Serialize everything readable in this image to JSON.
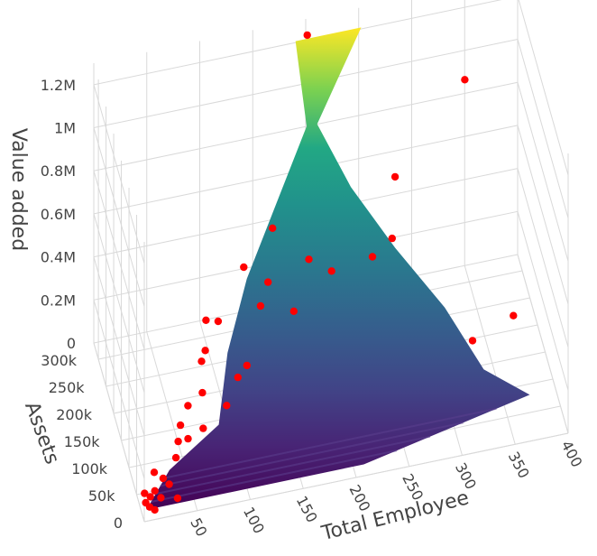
{
  "chart_data": {
    "type": "surface3d",
    "title": "",
    "axes": {
      "x": {
        "label": "Total Employee",
        "range": [
          0,
          400
        ],
        "ticks": [
          "50",
          "100",
          "150",
          "200",
          "250",
          "300",
          "350",
          "400"
        ]
      },
      "y": {
        "label": "Assets",
        "range": [
          0,
          330000
        ],
        "ticks": [
          "0",
          "50k",
          "100k",
          "150k",
          "200k",
          "250k",
          "300k"
        ]
      },
      "z": {
        "label": "Value added",
        "range": [
          0,
          1300000
        ],
        "ticks": [
          "0",
          "0.2M",
          "0.4M",
          "0.6M",
          "0.8M",
          "1M",
          "1.2M"
        ]
      }
    },
    "grid": true,
    "colorscale": "viridis",
    "surface_profile": [
      {
        "value_added": 0,
        "employee_min": 5,
        "employee_max": 210
      },
      {
        "value_added": 100000,
        "employee_min": 30,
        "employee_max": 370
      },
      {
        "value_added": 200000,
        "employee_min": 80,
        "employee_max": 330
      },
      {
        "value_added": 400000,
        "employee_min": 95,
        "employee_max": 300
      },
      {
        "value_added": 600000,
        "employee_min": 120,
        "employee_max": 260
      },
      {
        "value_added": 800000,
        "employee_min": 155,
        "employee_max": 225
      },
      {
        "value_added": 1000000,
        "employee_min": 190,
        "employee_max": 200
      },
      {
        "value_added": 1250000,
        "employee_min": 188,
        "employee_max": 250
      }
    ],
    "points_color": "#ff0000",
    "points": [
      {
        "employee": 5,
        "assets": 25000,
        "value_added": 20000
      },
      {
        "employee": 8,
        "assets": 20000,
        "value_added": 10000
      },
      {
        "employee": 10,
        "assets": 30000,
        "value_added": 30000
      },
      {
        "employee": 12,
        "assets": 15000,
        "value_added": 5000
      },
      {
        "employee": 15,
        "assets": 35000,
        "value_added": 40000
      },
      {
        "employee": 6,
        "assets": 40000,
        "value_added": 25000
      },
      {
        "employee": 20,
        "assets": 30000,
        "value_added": 15000
      },
      {
        "employee": 25,
        "assets": 50000,
        "value_added": 50000
      },
      {
        "employee": 30,
        "assets": 45000,
        "value_added": 30000
      },
      {
        "employee": 35,
        "assets": 25000,
        "value_added": 10000
      },
      {
        "employee": 18,
        "assets": 60000,
        "value_added": 60000
      },
      {
        "employee": 40,
        "assets": 70000,
        "value_added": 80000
      },
      {
        "employee": 45,
        "assets": 90000,
        "value_added": 100000
      },
      {
        "employee": 50,
        "assets": 110000,
        "value_added": 120000
      },
      {
        "employee": 55,
        "assets": 95000,
        "value_added": 90000
      },
      {
        "employee": 60,
        "assets": 130000,
        "value_added": 150000
      },
      {
        "employee": 70,
        "assets": 100000,
        "value_added": 110000
      },
      {
        "employee": 75,
        "assets": 140000,
        "value_added": 170000
      },
      {
        "employee": 80,
        "assets": 180000,
        "value_added": 210000
      },
      {
        "employee": 85,
        "assets": 190000,
        "value_added": 230000
      },
      {
        "employee": 90,
        "assets": 220000,
        "value_added": 290000
      },
      {
        "employee": 95,
        "assets": 120000,
        "value_added": 140000
      },
      {
        "employee": 100,
        "assets": 210000,
        "value_added": 300000
      },
      {
        "employee": 110,
        "assets": 150000,
        "value_added": 180000
      },
      {
        "employee": 120,
        "assets": 160000,
        "value_added": 200000
      },
      {
        "employee": 130,
        "assets": 250000,
        "value_added": 420000
      },
      {
        "employee": 140,
        "assets": 210000,
        "value_added": 330000
      },
      {
        "employee": 150,
        "assets": 230000,
        "value_added": 380000
      },
      {
        "employee": 160,
        "assets": 270000,
        "value_added": 520000
      },
      {
        "employee": 170,
        "assets": 200000,
        "value_added": 300000
      },
      {
        "employee": 190,
        "assets": 240000,
        "value_added": 420000
      },
      {
        "employee": 210,
        "assets": 230000,
        "value_added": 370000
      },
      {
        "employee": 250,
        "assets": 240000,
        "value_added": 370000
      },
      {
        "employee": 270,
        "assets": 250000,
        "value_added": 410000
      },
      {
        "employee": 280,
        "assets": 300000,
        "value_added": 560000
      },
      {
        "employee": 330,
        "assets": 140000,
        "value_added": 150000
      },
      {
        "employee": 340,
        "assets": 260000,
        "value_added": 1050000
      },
      {
        "employee": 370,
        "assets": 150000,
        "value_added": 200000
      },
      {
        "employee": 200,
        "assets": 320000,
        "value_added": 1250000
      }
    ]
  }
}
